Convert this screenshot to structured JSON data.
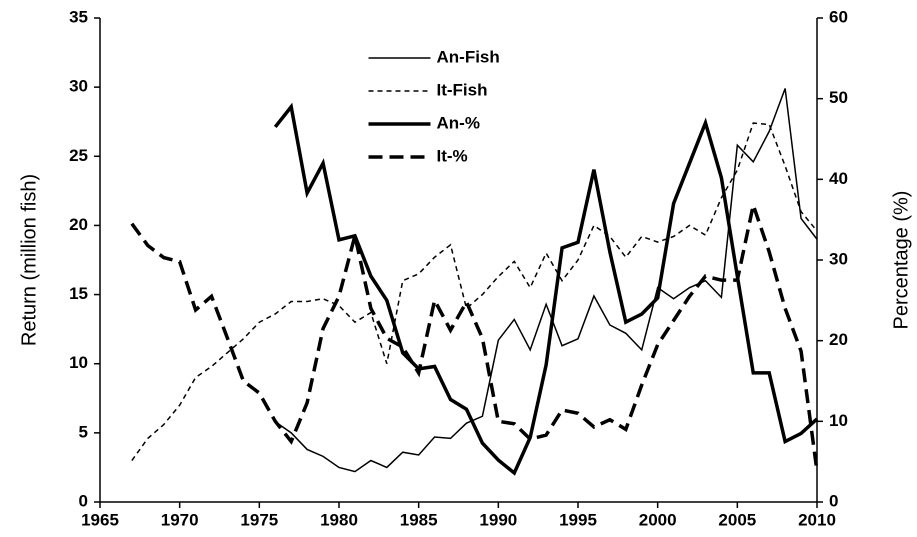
{
  "chart_data": {
    "type": "line",
    "xlabel": null,
    "ylabel": "Return (million fish)",
    "y2label": "Percentage (%)",
    "x": [
      1967,
      1968,
      1969,
      1970,
      1971,
      1972,
      1973,
      1974,
      1975,
      1976,
      1977,
      1978,
      1979,
      1980,
      1981,
      1982,
      1983,
      1984,
      1985,
      1986,
      1987,
      1988,
      1989,
      1990,
      1991,
      1992,
      1993,
      1994,
      1995,
      1996,
      1997,
      1998,
      1999,
      2000,
      2001,
      2002,
      2003,
      2004,
      2005,
      2006,
      2007,
      2008,
      2009,
      2010
    ],
    "series": [
      {
        "name": "An-Fish",
        "color": "#000000",
        "dashed": false,
        "linewidth": 1.5,
        "axis": "y",
        "values": [
          null,
          null,
          null,
          null,
          null,
          null,
          null,
          null,
          null,
          5.8,
          5.0,
          3.8,
          3.3,
          2.5,
          2.2,
          3.0,
          2.5,
          3.6,
          3.4,
          4.7,
          4.6,
          5.7,
          6.2,
          11.7,
          13.2,
          11.0,
          14.3,
          11.3,
          11.8,
          14.9,
          12.8,
          12.2,
          11.0,
          15.5,
          14.7,
          15.5,
          16.0,
          14.8,
          25.8,
          24.6,
          26.8,
          29.9,
          20.5,
          19.0
        ]
      },
      {
        "name": "It-Fish",
        "color": "#000000",
        "dashed": true,
        "linewidth": 1.5,
        "axis": "y",
        "values": [
          3.0,
          4.6,
          5.6,
          7.0,
          9.0,
          9.8,
          10.8,
          11.8,
          13.0,
          13.6,
          14.5,
          14.5,
          14.7,
          14.2,
          13.0,
          13.7,
          10.0,
          16.0,
          16.5,
          17.7,
          18.6,
          14.0,
          15.0,
          16.3,
          17.4,
          15.5,
          18.0,
          16.0,
          17.5,
          20.0,
          19.2,
          17.7,
          19.2,
          18.8,
          19.2,
          20.0,
          19.3,
          22.0,
          24.0,
          27.4,
          27.3,
          24.3,
          21.0,
          19.6
        ]
      },
      {
        "name": "An-%",
        "color": "#000000",
        "dashed": false,
        "linewidth": 3.5,
        "axis": "y2",
        "values": [
          null,
          null,
          null,
          null,
          null,
          null,
          null,
          null,
          null,
          46.5,
          49,
          38.3,
          42,
          32.5,
          33,
          28,
          25,
          18.5,
          16.5,
          16.8,
          12.7,
          11.5,
          7.3,
          5.2,
          3.6,
          8.0,
          17.0,
          31.5,
          32.2,
          41.2,
          31.0,
          22.3,
          23.3,
          25.3,
          37.0,
          42.0,
          47.0,
          40.2,
          28.0,
          16.0,
          16.0,
          7.5,
          8.5,
          10.3
        ]
      },
      {
        "name": "It-%",
        "color": "#000000",
        "dashed": true,
        "linewidth": 3.5,
        "axis": "y2",
        "values": [
          34.5,
          31.8,
          30.3,
          29.8,
          23.8,
          25.5,
          20.3,
          15,
          13.5,
          10,
          7.5,
          12.3,
          21.5,
          25.5,
          33,
          24,
          20.3,
          19.2,
          16,
          25,
          21.3,
          24.8,
          20.3,
          10,
          9.7,
          7.8,
          8.3,
          11.4,
          11,
          9.3,
          10.2,
          9.0,
          14.5,
          19.5,
          22.5,
          25.5,
          28,
          27.5,
          27.5,
          36.8,
          31,
          24,
          18.7,
          3.8
        ]
      }
    ],
    "xlim": [
      1965,
      2010
    ],
    "xticks": [
      1965,
      1970,
      1975,
      1980,
      1985,
      1990,
      1995,
      2000,
      2005,
      2010
    ],
    "ylim": [
      0,
      35
    ],
    "yticks": [
      0,
      5,
      10,
      15,
      20,
      25,
      30,
      35
    ],
    "y2lim": [
      0,
      60
    ],
    "y2ticks": [
      0,
      10,
      20,
      30,
      40,
      50,
      60
    ],
    "grid": false,
    "legend": "upper center"
  }
}
